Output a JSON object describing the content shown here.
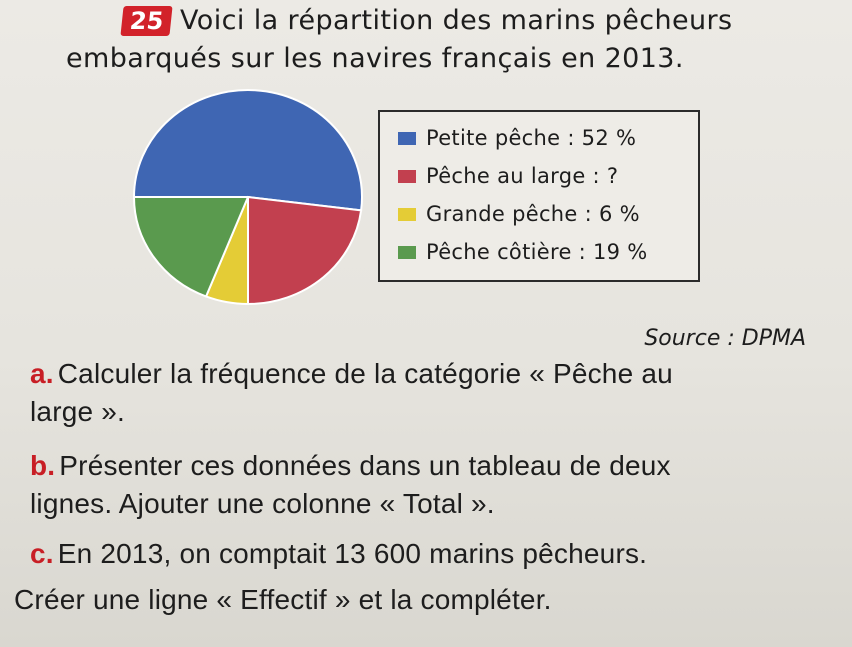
{
  "exercise": {
    "number": "25",
    "intro_line1": "Voici la répartition des marins pêcheurs",
    "intro_line2": "embarqués sur les navires français en 2013."
  },
  "chart_data": {
    "type": "pie",
    "title": "",
    "legend_position": "right",
    "categories": [
      "Petite pêche",
      "Pêche au large",
      "Grande pêche",
      "Pêche côtière"
    ],
    "values": [
      52,
      23,
      6,
      19
    ],
    "colors": [
      "#3f66b3",
      "#c2404f",
      "#e4cc36",
      "#5a9a4e"
    ],
    "legend_labels": [
      "Petite pêche : 52 %",
      "Pêche au large : ?",
      "Grande pêche : 6 %",
      "Pêche côtière : 19 %"
    ]
  },
  "source": "Source : DPMA",
  "questions": [
    {
      "letter": "a.",
      "line1": "Calculer la fréquence de la catégorie « Pêche au",
      "line2": "large »."
    },
    {
      "letter": "b.",
      "line1": "Présenter ces données dans un tableau de deux",
      "line2": "lignes. Ajouter une colonne « Total »."
    },
    {
      "letter": "c.",
      "line1": "En 2013, on comptait 13 600 marins pêcheurs.",
      "line2": "Créer une ligne « Effectif » et la compléter."
    }
  ]
}
